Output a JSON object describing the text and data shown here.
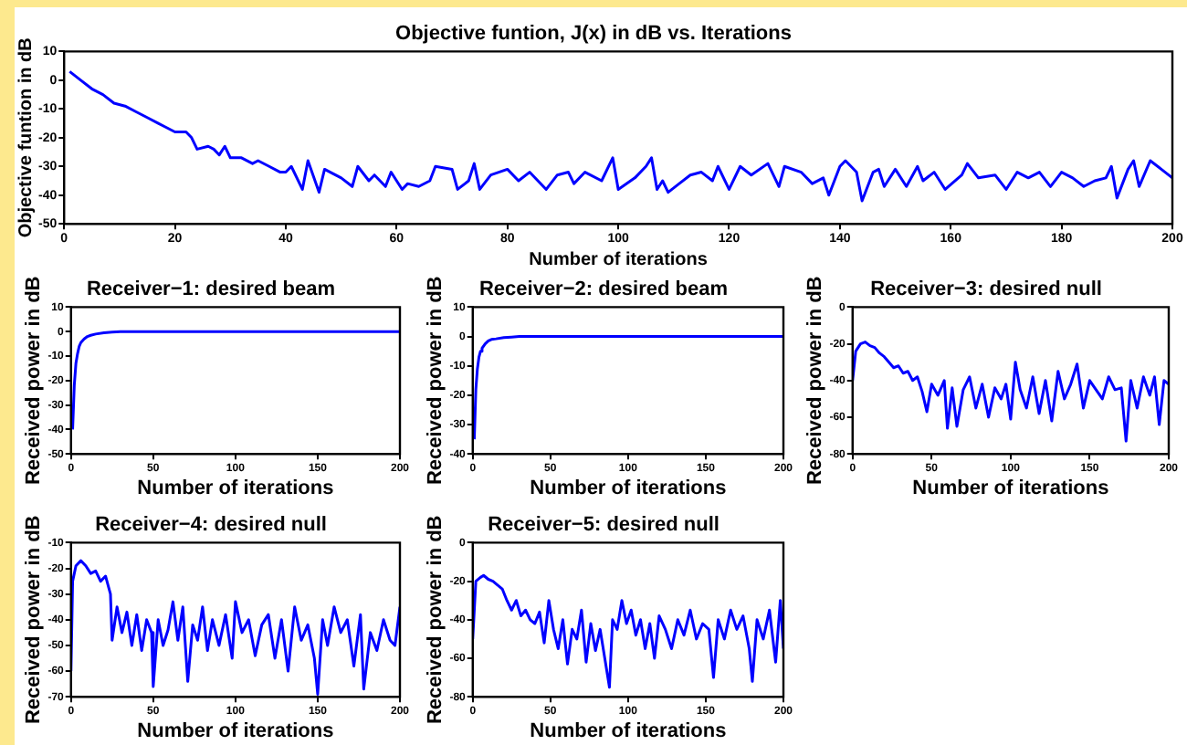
{
  "chart_data": [
    {
      "type": "line",
      "title": "Objective funtion, J(x) in dB vs. Iterations",
      "xlabel": "Number of iterations",
      "ylabel": "Objective funtion in dB",
      "xlim": [
        0,
        200
      ],
      "xticks": [
        0,
        20,
        40,
        60,
        80,
        100,
        120,
        140,
        160,
        180,
        200
      ],
      "ylim": [
        -50,
        10
      ],
      "yticks": [
        -50,
        -40,
        -30,
        -20,
        -10,
        0,
        10
      ],
      "x": [
        1,
        3,
        5,
        7,
        9,
        11,
        13,
        15,
        17,
        18,
        20,
        22,
        23,
        24,
        26,
        27,
        28,
        29,
        30,
        32,
        34,
        35,
        37,
        39,
        40,
        41,
        43,
        44,
        46,
        47,
        50,
        52,
        53,
        55,
        56,
        58,
        59,
        61,
        62,
        64,
        66,
        67,
        70,
        71,
        73,
        74,
        75,
        77,
        80,
        82,
        84,
        87,
        89,
        91,
        92,
        94,
        97,
        99,
        100,
        103,
        105,
        106,
        107,
        108,
        109,
        111,
        113,
        115,
        117,
        118,
        120,
        122,
        124,
        127,
        129,
        130,
        133,
        135,
        137,
        138,
        140,
        141,
        143,
        144,
        146,
        147,
        148,
        150,
        152,
        154,
        155,
        157,
        159,
        162,
        163,
        165,
        168,
        170,
        172,
        174,
        176,
        178,
        180,
        182,
        184,
        186,
        188,
        189,
        190,
        192,
        193,
        194,
        196,
        198,
        200
      ],
      "series": [
        {
          "color": "#0000ff",
          "values": [
            3,
            0,
            -3,
            -5,
            -8,
            -9,
            -11,
            -13,
            -15,
            -16,
            -18,
            -18,
            -20,
            -24,
            -23,
            -24,
            -26,
            -23,
            -27,
            -27,
            -29,
            -28,
            -30,
            -32,
            -32,
            -30,
            -38,
            -28,
            -39,
            -31,
            -34,
            -37,
            -30,
            -35,
            -33,
            -37,
            -32,
            -38,
            -36,
            -37,
            -35,
            -30,
            -31,
            -38,
            -35,
            -29,
            -38,
            -33,
            -31,
            -35,
            -32,
            -38,
            -33,
            -32,
            -36,
            -32,
            -35,
            -27,
            -38,
            -34,
            -30,
            -27,
            -38,
            -35,
            -39,
            -36,
            -33,
            -32,
            -35,
            -30,
            -38,
            -30,
            -33,
            -29,
            -37,
            -30,
            -32,
            -36,
            -34,
            -40,
            -30,
            -28,
            -32,
            -42,
            -32,
            -31,
            -37,
            -31,
            -37,
            -30,
            -35,
            -32,
            -38,
            -33,
            -29,
            -34,
            -33,
            -38,
            -32,
            -34,
            -32,
            -37,
            -32,
            -34,
            -37,
            -35,
            -34,
            -30,
            -41,
            -31,
            -28,
            -37,
            -28,
            -31,
            -34
          ]
        }
      ]
    },
    {
      "type": "line",
      "title": "Receiver−1: desired beam",
      "xlabel": "Number of iterations",
      "ylabel": "Received power in dB",
      "xlim": [
        0,
        200
      ],
      "xticks": [
        0,
        50,
        100,
        150,
        200
      ],
      "ylim": [
        -50,
        10
      ],
      "yticks": [
        -50,
        -40,
        -30,
        -20,
        -10,
        0,
        10
      ],
      "x": [
        1,
        2,
        3,
        4,
        5,
        6,
        8,
        10,
        12,
        15,
        20,
        25,
        30,
        50,
        75,
        100,
        125,
        150,
        175,
        200
      ],
      "series": [
        {
          "color": "#0000ff",
          "values": [
            -40,
            -22,
            -13,
            -9,
            -6,
            -4.5,
            -3,
            -2,
            -1.5,
            -1,
            -0.5,
            -0.2,
            0,
            0,
            0,
            0,
            0,
            0,
            0,
            0
          ]
        }
      ]
    },
    {
      "type": "line",
      "title": "Receiver−2: desired beam",
      "xlabel": "Number of iterations",
      "ylabel": "Received power in dB",
      "xlim": [
        0,
        200
      ],
      "xticks": [
        0,
        50,
        100,
        150,
        200
      ],
      "ylim": [
        -40,
        10
      ],
      "yticks": [
        -40,
        -30,
        -20,
        -10,
        0,
        10
      ],
      "x": [
        1,
        2,
        3,
        4,
        5,
        6,
        8,
        10,
        12,
        15,
        20,
        25,
        30,
        50,
        75,
        100,
        125,
        150,
        175,
        200
      ],
      "series": [
        {
          "color": "#0000ff",
          "values": [
            -35,
            -18,
            -11,
            -7,
            -5,
            -4,
            -2.5,
            -1.5,
            -1,
            -0.8,
            -0.4,
            -0.2,
            0,
            0,
            0,
            0,
            0,
            0,
            0,
            0
          ]
        }
      ]
    },
    {
      "type": "line",
      "title": "Receiver−3: desired null",
      "xlabel": "Number of iterations",
      "ylabel": "Received power in dB",
      "xlim": [
        0,
        200
      ],
      "xticks": [
        0,
        50,
        100,
        150,
        200
      ],
      "ylim": [
        -80,
        0
      ],
      "yticks": [
        -80,
        -60,
        -40,
        -20,
        0
      ],
      "x": [
        0,
        2,
        5,
        8,
        11,
        14,
        17,
        20,
        23,
        26,
        29,
        32,
        35,
        38,
        41,
        44,
        47,
        50,
        54,
        58,
        60,
        63,
        66,
        70,
        74,
        78,
        82,
        86,
        90,
        94,
        97,
        100,
        103,
        106,
        110,
        114,
        118,
        122,
        126,
        130,
        134,
        138,
        142,
        146,
        150,
        154,
        158,
        162,
        166,
        170,
        173,
        176,
        180,
        184,
        188,
        191,
        194,
        197,
        200
      ],
      "series": [
        {
          "color": "#0000ff",
          "values": [
            -40,
            -24,
            -20,
            -19,
            -21,
            -22,
            -25,
            -27,
            -30,
            -33,
            -32,
            -36,
            -35,
            -40,
            -38,
            -46,
            -57,
            -42,
            -48,
            -40,
            -66,
            -44,
            -65,
            -45,
            -38,
            -55,
            -42,
            -60,
            -44,
            -50,
            -42,
            -61,
            -30,
            -45,
            -55,
            -38,
            -58,
            -40,
            -62,
            -35,
            -50,
            -42,
            -31,
            -55,
            -40,
            -45,
            -50,
            -38,
            -45,
            -44,
            -73,
            -40,
            -55,
            -38,
            -48,
            -38,
            -64,
            -40,
            -42
          ]
        }
      ]
    },
    {
      "type": "line",
      "title": "Receiver−4: desired null",
      "xlabel": "Number of iterations",
      "ylabel": "Received power in dB",
      "xlim": [
        0,
        200
      ],
      "xticks": [
        0,
        50,
        100,
        150,
        200
      ],
      "ylim": [
        -70,
        -10
      ],
      "yticks": [
        -70,
        -60,
        -50,
        -40,
        -30,
        -20,
        -10
      ],
      "x": [
        0,
        1,
        3,
        6,
        9,
        12,
        15,
        18,
        21,
        24,
        25,
        28,
        31,
        34,
        37,
        40,
        43,
        46,
        49,
        50,
        53,
        56,
        59,
        62,
        65,
        68,
        71,
        74,
        77,
        80,
        83,
        86,
        90,
        94,
        98,
        100,
        104,
        108,
        112,
        116,
        120,
        124,
        128,
        132,
        136,
        140,
        144,
        148,
        150,
        153,
        156,
        160,
        164,
        168,
        172,
        176,
        178,
        182,
        186,
        190,
        194,
        197,
        200
      ],
      "series": [
        {
          "color": "#0000ff",
          "values": [
            -60,
            -25,
            -19,
            -17,
            -19,
            -22,
            -21,
            -25,
            -23,
            -30,
            -48,
            -35,
            -45,
            -37,
            -50,
            -38,
            -52,
            -40,
            -45,
            -66,
            -40,
            -50,
            -44,
            -33,
            -48,
            -35,
            -64,
            -42,
            -48,
            -35,
            -52,
            -40,
            -50,
            -38,
            -55,
            -33,
            -45,
            -40,
            -54,
            -42,
            -38,
            -55,
            -40,
            -60,
            -35,
            -48,
            -42,
            -55,
            -69,
            -40,
            -50,
            -35,
            -45,
            -40,
            -58,
            -38,
            -67,
            -45,
            -52,
            -40,
            -48,
            -50,
            -35
          ]
        }
      ]
    },
    {
      "type": "line",
      "title": "Receiver−5: desired null",
      "xlabel": "Number of iterations",
      "ylabel": "Received power in dB",
      "xlim": [
        0,
        200
      ],
      "xticks": [
        0,
        50,
        100,
        150,
        200
      ],
      "ylim": [
        -80,
        0
      ],
      "yticks": [
        -80,
        -60,
        -40,
        -20,
        0
      ],
      "x": [
        0,
        2,
        5,
        7,
        10,
        13,
        16,
        19,
        22,
        25,
        28,
        31,
        34,
        37,
        40,
        43,
        46,
        49,
        52,
        55,
        58,
        61,
        64,
        67,
        70,
        73,
        76,
        79,
        82,
        85,
        88,
        90,
        93,
        96,
        99,
        102,
        105,
        108,
        111,
        114,
        117,
        120,
        124,
        128,
        132,
        136,
        140,
        144,
        148,
        152,
        155,
        158,
        162,
        166,
        170,
        174,
        178,
        180,
        183,
        187,
        191,
        195,
        198,
        200
      ],
      "series": [
        {
          "color": "#0000ff",
          "values": [
            -50,
            -20,
            -18,
            -17,
            -19,
            -20,
            -22,
            -24,
            -30,
            -35,
            -30,
            -38,
            -35,
            -40,
            -42,
            -36,
            -52,
            -30,
            -45,
            -55,
            -40,
            -63,
            -45,
            -50,
            -35,
            -62,
            -42,
            -56,
            -45,
            -60,
            -75,
            -40,
            -45,
            -30,
            -42,
            -35,
            -48,
            -40,
            -55,
            -42,
            -60,
            -38,
            -45,
            -55,
            -40,
            -48,
            -35,
            -50,
            -42,
            -45,
            -70,
            -40,
            -50,
            -35,
            -45,
            -38,
            -55,
            -72,
            -40,
            -50,
            -35,
            -62,
            -30,
            -55
          ]
        }
      ]
    }
  ]
}
